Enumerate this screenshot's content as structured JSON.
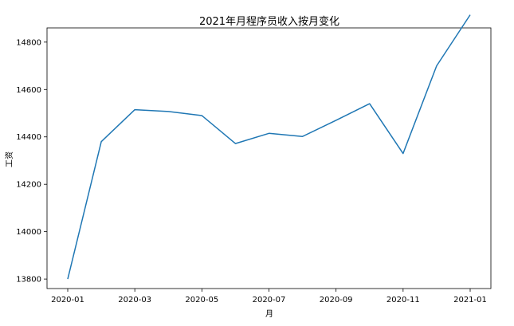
{
  "chart_data": {
    "type": "line",
    "title": "2021年月程序员收入按月变化",
    "xlabel": "月",
    "ylabel": "工资",
    "x": [
      "2020-01",
      "2020-02",
      "2020-03",
      "2020-04",
      "2020-05",
      "2020-06",
      "2020-07",
      "2020-08",
      "2020-09",
      "2020-10",
      "2020-11",
      "2020-12",
      "2021-01"
    ],
    "x_ticks": [
      "2020-01",
      "2020-03",
      "2020-05",
      "2020-07",
      "2020-09",
      "2020-11",
      "2021-01"
    ],
    "y_ticks": [
      13800,
      14000,
      14200,
      14400,
      14600,
      14800
    ],
    "ylim": [
      13760,
      14860
    ],
    "grid": false,
    "series": [
      {
        "values": [
          13800,
          14380,
          14515,
          14507,
          14490,
          14372,
          14415,
          14402,
          14470,
          14540,
          14330,
          14700,
          14915
        ],
        "color": "#1f77b4"
      }
    ]
  }
}
